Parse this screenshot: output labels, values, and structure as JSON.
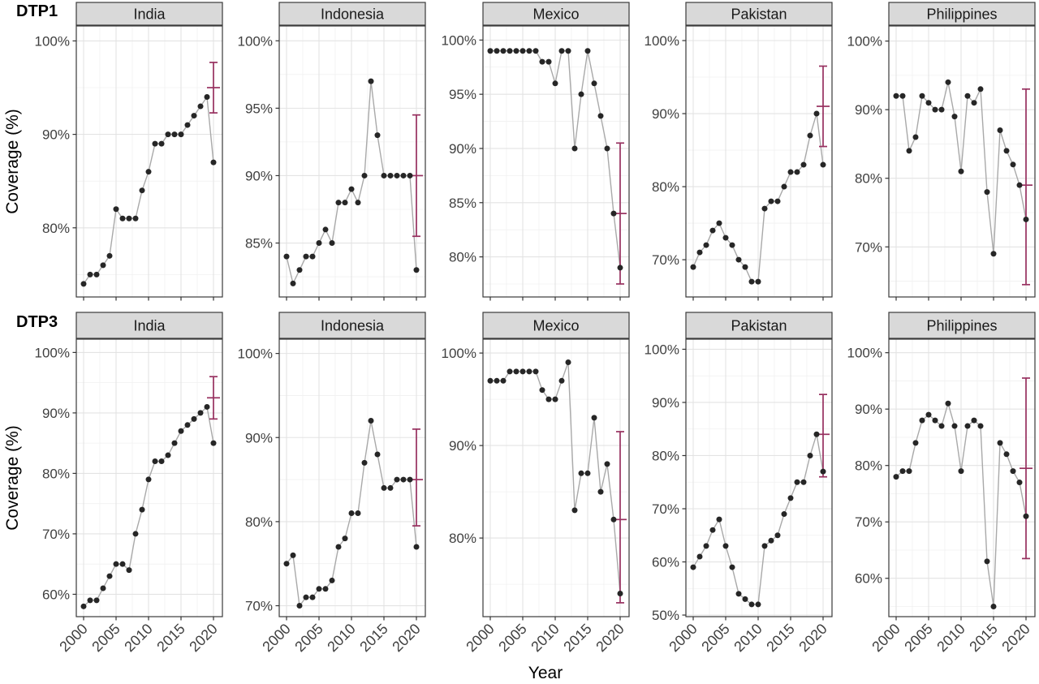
{
  "figure": {
    "row_labels": [
      "DTP1",
      "DTP3"
    ],
    "y_axis_title": "Coverage (%)",
    "x_axis_title": "Year",
    "colors": {
      "strip_bg": "#d9d9d9",
      "strip_border": "#3a3a3a",
      "panel_bg": "#ffffff",
      "panel_border": "#3a3a3a",
      "grid_major": "#e3e3e3",
      "grid_minor": "#f1f1f1",
      "data_line": "#a9a9a9",
      "data_point": "#262626",
      "error_bar": "#97305f",
      "tick_mark": "#333333",
      "tick_label": "#404040",
      "strip_text": "#1a1a1a"
    }
  },
  "chart_data": {
    "type": "line",
    "title": "",
    "xlabel": "Year",
    "ylabel": "Coverage (%)",
    "facet_rows": [
      "DTP1",
      "DTP3"
    ],
    "facet_cols": [
      "India",
      "Indonesia",
      "Mexico",
      "Pakistan",
      "Philippines"
    ],
    "years": [
      2000,
      2001,
      2002,
      2003,
      2004,
      2005,
      2006,
      2007,
      2008,
      2009,
      2010,
      2011,
      2012,
      2013,
      2014,
      2015,
      2016,
      2017,
      2018,
      2019,
      2020
    ],
    "x_major_ticks": [
      2000,
      2005,
      2010,
      2015,
      2020
    ],
    "x_tick_labels": [
      "2000",
      "2005",
      "2010",
      "2015",
      "2020"
    ],
    "legend": "none",
    "grid": "on",
    "panels": [
      {
        "row": "DTP1",
        "country": "India",
        "values": [
          74,
          75,
          75,
          76,
          77,
          82,
          81,
          81,
          81,
          84,
          86,
          89,
          89,
          90,
          90,
          90,
          91,
          92,
          93,
          94,
          87
        ],
        "y_ticks": [
          80,
          90,
          100
        ],
        "ylim": [
          72.6,
          101.6
        ],
        "estimate_2020": {
          "low": 92.3,
          "center": 95,
          "high": 97.7
        }
      },
      {
        "row": "DTP1",
        "country": "Indonesia",
        "values": [
          84,
          82,
          83,
          84,
          84,
          85,
          86,
          85,
          88,
          88,
          89,
          88,
          90,
          97,
          93,
          90,
          90,
          90,
          90,
          90,
          83
        ],
        "y_ticks": [
          85,
          90,
          95,
          100
        ],
        "ylim": [
          81,
          101.1
        ],
        "estimate_2020": {
          "low": 85.5,
          "center": 90,
          "high": 94.5
        }
      },
      {
        "row": "DTP1",
        "country": "Mexico",
        "values": [
          99,
          99,
          99,
          99,
          99,
          99,
          99,
          99,
          98,
          98,
          96,
          99,
          99,
          90,
          95,
          99,
          96,
          93,
          90,
          84,
          79
        ],
        "y_ticks": [
          80,
          85,
          90,
          95,
          100
        ],
        "ylim": [
          76.3,
          101.3
        ],
        "estimate_2020": {
          "low": 77.5,
          "center": 84,
          "high": 90.5
        }
      },
      {
        "row": "DTP1",
        "country": "Pakistan",
        "values": [
          69,
          71,
          72,
          74,
          75,
          73,
          72,
          70,
          69,
          67,
          67,
          77,
          78,
          78,
          80,
          82,
          82,
          83,
          87,
          90,
          83
        ],
        "y_ticks": [
          70,
          80,
          90,
          100
        ],
        "ylim": [
          64.9,
          102
        ],
        "estimate_2020": {
          "low": 85.5,
          "center": 91,
          "high": 96.5
        }
      },
      {
        "row": "DTP1",
        "country": "Philippines",
        "values": [
          92,
          92,
          84,
          86,
          92,
          91,
          90,
          90,
          94,
          89,
          81,
          92,
          91,
          93,
          78,
          69,
          87,
          84,
          82,
          79,
          74
        ],
        "y_ticks": [
          70,
          80,
          90,
          100
        ],
        "ylim": [
          62.7,
          102.2
        ],
        "estimate_2020": {
          "low": 64.5,
          "center": 79,
          "high": 93
        }
      },
      {
        "row": "DTP3",
        "country": "India",
        "values": [
          58,
          59,
          59,
          61,
          63,
          65,
          65,
          64,
          70,
          74,
          79,
          82,
          82,
          83,
          85,
          87,
          88,
          89,
          90,
          91,
          85
        ],
        "y_ticks": [
          60,
          70,
          80,
          90,
          100
        ],
        "ylim": [
          56.3,
          102.2
        ],
        "estimate_2020": {
          "low": 89,
          "center": 92.5,
          "high": 96
        }
      },
      {
        "row": "DTP3",
        "country": "Indonesia",
        "values": [
          75,
          76,
          70,
          71,
          71,
          72,
          72,
          73,
          77,
          78,
          81,
          81,
          87,
          92,
          88,
          84,
          84,
          85,
          85,
          85,
          77
        ],
        "y_ticks": [
          70,
          80,
          90,
          100
        ],
        "ylim": [
          68.7,
          101.7
        ],
        "estimate_2020": {
          "low": 79.5,
          "center": 85,
          "high": 91
        }
      },
      {
        "row": "DTP3",
        "country": "Mexico",
        "values": [
          97,
          97,
          97,
          98,
          98,
          98,
          98,
          98,
          96,
          95,
          95,
          97,
          99,
          83,
          87,
          87,
          93,
          85,
          88,
          82,
          74
        ],
        "y_ticks": [
          80,
          90,
          100
        ],
        "ylim": [
          71.5,
          101.5
        ],
        "estimate_2020": {
          "low": 73,
          "center": 82,
          "high": 91.5
        }
      },
      {
        "row": "DTP3",
        "country": "Pakistan",
        "values": [
          59,
          61,
          63,
          66,
          68,
          63,
          59,
          54,
          53,
          52,
          52,
          63,
          64,
          65,
          69,
          72,
          75,
          75,
          80,
          84,
          77
        ],
        "y_ticks": [
          50,
          60,
          70,
          80,
          90,
          100
        ],
        "ylim": [
          49.7,
          101.9
        ],
        "estimate_2020": {
          "low": 76,
          "center": 84,
          "high": 91.5
        }
      },
      {
        "row": "DTP3",
        "country": "Philippines",
        "values": [
          78,
          79,
          79,
          84,
          88,
          89,
          88,
          87,
          91,
          87,
          79,
          87,
          88,
          87,
          63,
          55,
          84,
          82,
          79,
          77,
          71
        ],
        "y_ticks": [
          60,
          70,
          80,
          90,
          100
        ],
        "ylim": [
          53.2,
          102.4
        ],
        "estimate_2020": {
          "low": 63.5,
          "center": 79.5,
          "high": 95.5
        }
      }
    ]
  }
}
